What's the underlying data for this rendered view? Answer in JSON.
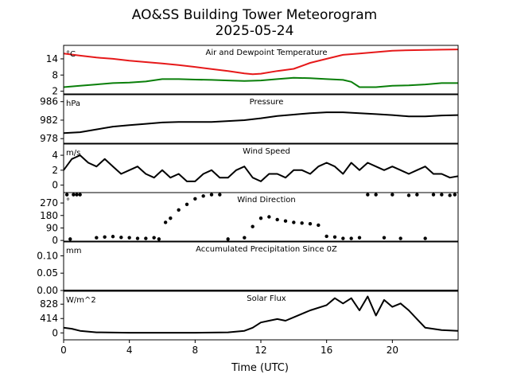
{
  "figure": {
    "title_line1": "AO&SS Building Tower Meteorogram",
    "title_line2": "2025-05-24",
    "xlabel": "Time (UTC)",
    "xlim": [
      0,
      24
    ],
    "xticks": [
      "0",
      "4",
      "8",
      "12",
      "16",
      "20"
    ]
  },
  "chart_data": [
    {
      "type": "line",
      "title": "Air and Dewpoint Temperature",
      "unit": "°C",
      "ylim": [
        1,
        19
      ],
      "yticks": [
        "2",
        "8",
        "14"
      ],
      "series": [
        {
          "color": "#e6191a",
          "x": [
            0,
            1,
            2,
            3,
            4,
            5,
            6,
            7,
            8,
            9,
            10,
            11,
            11.5,
            12,
            13,
            14,
            15,
            16,
            17,
            18,
            19,
            20,
            21,
            22,
            23,
            24
          ],
          "values": [
            16,
            15.2,
            14.5,
            14,
            13.3,
            12.8,
            12.3,
            11.7,
            11,
            10.2,
            9.5,
            8.6,
            8.3,
            8.5,
            9.5,
            10.3,
            12.5,
            14,
            15.5,
            16,
            16.5,
            17,
            17.2,
            17.3,
            17.4,
            17.5
          ]
        },
        {
          "color": "#0a7f0a",
          "x": [
            0,
            1,
            2,
            3,
            4,
            5,
            6,
            7,
            8,
            9,
            10,
            11,
            12,
            13,
            14,
            15,
            16,
            17,
            17.5,
            18,
            19,
            20,
            21,
            22,
            23,
            24
          ],
          "values": [
            3.5,
            4,
            4.5,
            5,
            5.2,
            5.6,
            6.5,
            6.5,
            6.3,
            6.2,
            6,
            5.8,
            6,
            6.5,
            7,
            6.8,
            6.5,
            6.2,
            5.5,
            3.5,
            3.5,
            4,
            4.2,
            4.5,
            5,
            5
          ]
        }
      ]
    },
    {
      "type": "line",
      "title": "Pressure",
      "unit": "hPa",
      "ylim": [
        977,
        987.5
      ],
      "yticks": [
        "978",
        "982",
        "986"
      ],
      "series": [
        {
          "color": "#000000",
          "x": [
            0,
            1,
            2,
            3,
            4,
            5,
            6,
            7,
            8,
            9,
            10,
            11,
            12,
            13,
            14,
            15,
            16,
            17,
            18,
            19,
            20,
            21,
            22,
            23,
            24
          ],
          "values": [
            979.2,
            979.4,
            980.0,
            980.6,
            980.9,
            981.2,
            981.5,
            981.6,
            981.6,
            981.6,
            981.8,
            982.0,
            982.4,
            982.9,
            983.2,
            983.5,
            983.7,
            983.7,
            983.5,
            983.3,
            983.1,
            982.8,
            982.8,
            983.0,
            983.1
          ]
        }
      ]
    },
    {
      "type": "line",
      "title": "Wind Speed",
      "unit": "m/s",
      "ylim": [
        -1,
        5.5
      ],
      "yticks": [
        "0",
        "2",
        "4"
      ],
      "series": [
        {
          "color": "#000000",
          "x": [
            0,
            0.5,
            1,
            1.5,
            2,
            2.5,
            3,
            3.5,
            4,
            4.5,
            5,
            5.5,
            6,
            6.5,
            7,
            7.5,
            8,
            8.5,
            9,
            9.5,
            10,
            10.5,
            11,
            11.5,
            12,
            12.5,
            13,
            13.5,
            14,
            14.5,
            15,
            15.5,
            16,
            16.5,
            17,
            17.5,
            18,
            18.5,
            19,
            19.5,
            20,
            20.5,
            21,
            21.5,
            22,
            22.5,
            23,
            23.5,
            24
          ],
          "values": [
            2,
            3.5,
            4,
            3,
            2.5,
            3.5,
            2.5,
            1.5,
            2,
            2.5,
            1.5,
            1,
            2,
            1,
            1.5,
            0.5,
            0.5,
            1.5,
            2,
            1,
            1,
            2,
            2.5,
            1,
            0.5,
            1.5,
            1.5,
            1,
            2,
            2,
            1.5,
            2.5,
            3,
            2.5,
            1.5,
            3,
            2,
            3,
            2.5,
            2,
            2.5,
            2,
            1.5,
            2,
            2.5,
            1.5,
            1.5,
            1,
            1.2
          ]
        }
      ]
    },
    {
      "type": "scatter",
      "title": "Wind Direction",
      "unit": "°",
      "ylim": [
        -5,
        345
      ],
      "yticks": [
        "0",
        "90",
        "180",
        "270"
      ],
      "series": [
        {
          "color": "#000000",
          "x": [
            0.2,
            0.4,
            0.6,
            0.8,
            1,
            2,
            2.5,
            3,
            3.5,
            4,
            4.5,
            5,
            5.5,
            5.8,
            6.2,
            6.5,
            7,
            7.5,
            8,
            8.5,
            9,
            9.5,
            10,
            11,
            11.5,
            12,
            12.5,
            13,
            13.5,
            14,
            14.5,
            15,
            15.5,
            16,
            16.5,
            17,
            17.5,
            18,
            18.5,
            19,
            19.5,
            20,
            20.5,
            21,
            21.5,
            22,
            22.5,
            23,
            23.5,
            23.8
          ],
          "values": [
            330,
            10,
            330,
            330,
            330,
            20,
            25,
            28,
            22,
            20,
            15,
            15,
            20,
            10,
            130,
            160,
            220,
            260,
            300,
            320,
            330,
            330,
            10,
            20,
            100,
            160,
            170,
            150,
            140,
            130,
            125,
            120,
            110,
            30,
            25,
            15,
            15,
            20,
            330,
            330,
            20,
            330,
            15,
            325,
            330,
            15,
            330,
            330,
            325,
            330
          ]
        }
      ]
    },
    {
      "type": "line",
      "title": "Accumulated Precipitation Since 0Z",
      "unit": "mm",
      "ylim": [
        0,
        0.14
      ],
      "yticks": [
        "0.00",
        "0.05",
        "0.10"
      ],
      "series": [
        {
          "color": "#000000",
          "x": [
            0,
            24
          ],
          "values": [
            0,
            0
          ]
        }
      ]
    },
    {
      "type": "line",
      "title": "Solar Flux",
      "unit": "W/m^2",
      "ylim": [
        -200,
        1200
      ],
      "yticks": [
        "0",
        "414",
        "828"
      ],
      "series": [
        {
          "color": "#000000",
          "x": [
            0,
            0.5,
            1,
            2,
            4,
            6,
            8,
            10,
            11,
            11.5,
            12,
            12.5,
            13,
            13.5,
            14,
            14.5,
            15,
            16,
            16.5,
            17,
            17.5,
            18,
            18.5,
            19,
            19.5,
            20,
            20.5,
            21,
            21.5,
            22,
            23,
            24
          ],
          "values": [
            150,
            120,
            60,
            15,
            5,
            5,
            5,
            15,
            60,
            150,
            300,
            350,
            400,
            350,
            450,
            550,
            650,
            800,
            1000,
            850,
            1000,
            650,
            1050,
            500,
            950,
            750,
            850,
            650,
            400,
            150,
            80,
            60
          ]
        }
      ]
    }
  ]
}
